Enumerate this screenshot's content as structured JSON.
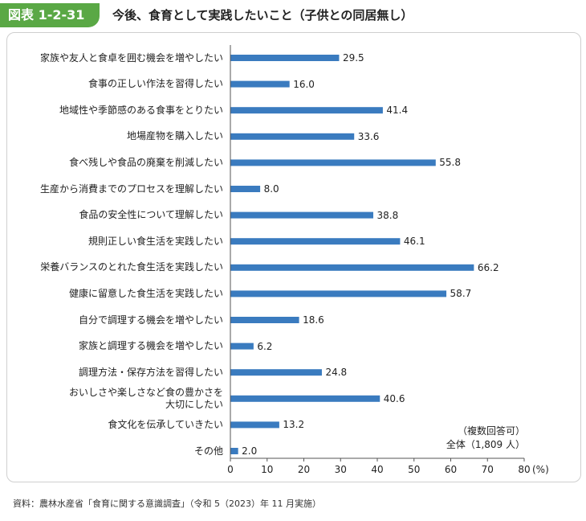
{
  "header": {
    "badge": "図表 1-2-31",
    "title": "今後、食育として実践したいこと（子供との同居無し）"
  },
  "note": {
    "line1": "（複数回答可）",
    "line2": "全体（1,809 人）"
  },
  "source": "資料：農林水産省「食育に関する意識調査」（令和 5（2023）年 11 月実施）",
  "colors": {
    "bar": "#3a7bbf",
    "badge": "#5aa845"
  },
  "chart_data": {
    "type": "bar",
    "orientation": "horizontal",
    "unit": "(%)",
    "xlim": [
      0,
      80
    ],
    "xticks": [
      "0",
      "10",
      "20",
      "30",
      "40",
      "50",
      "60",
      "70",
      "80"
    ],
    "categories": [
      "家族や友人と食卓を囲む機会を増やしたい",
      "食事の正しい作法を習得したい",
      "地域性や季節感のある食事をとりたい",
      "地場産物を購入したい",
      "食べ残しや食品の廃棄を削減したい",
      "生産から消費までのプロセスを理解したい",
      "食品の安全性について理解したい",
      "規則正しい食生活を実践したい",
      "栄養バランスのとれた食生活を実践したい",
      "健康に留意した食生活を実践したい",
      "自分で調理する機会を増やしたい",
      "家族と調理する機会を増やしたい",
      "調理方法・保存方法を習得したい",
      "おいしさや楽しさなど食の豊かさを\n大切にしたい",
      "食文化を伝承していきたい",
      "その他"
    ],
    "values": [
      29.5,
      16.0,
      41.4,
      33.6,
      55.8,
      8.0,
      38.8,
      46.1,
      66.2,
      58.7,
      18.6,
      6.2,
      24.8,
      40.6,
      13.2,
      2.0
    ],
    "value_labels": [
      "29.5",
      "16.0",
      "41.4",
      "33.6",
      "55.8",
      "8.0",
      "38.8",
      "46.1",
      "66.2",
      "58.7",
      "18.6",
      "6.2",
      "24.8",
      "40.6",
      "13.2",
      "2.0"
    ]
  }
}
